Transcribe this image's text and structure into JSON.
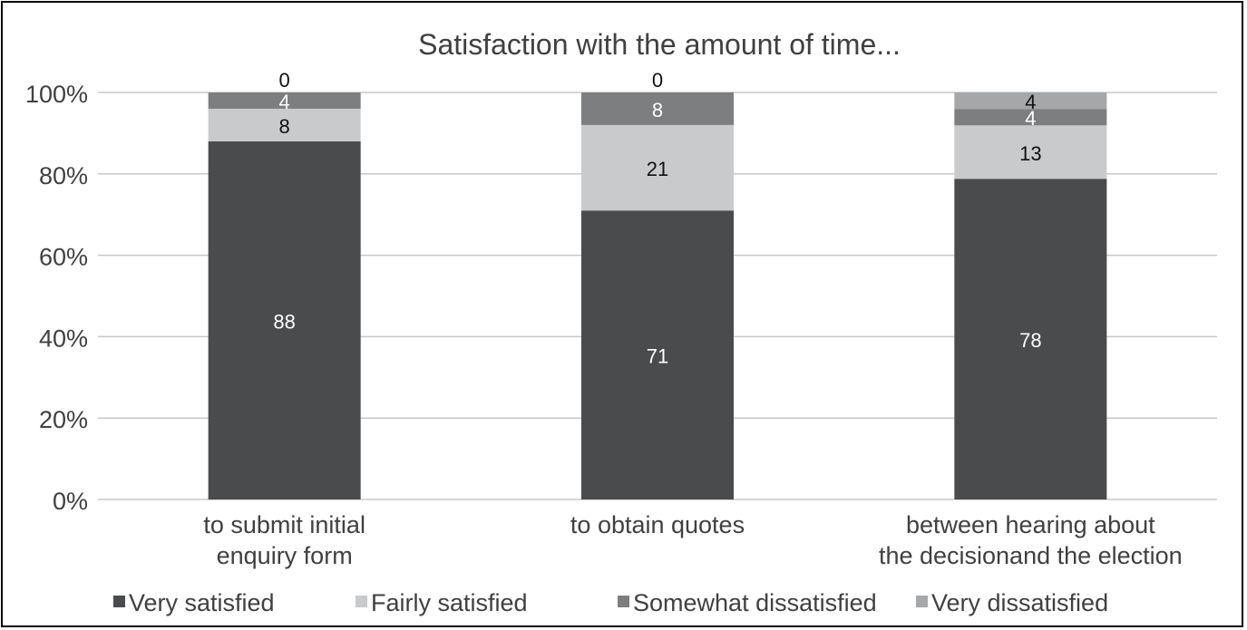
{
  "chart_data": {
    "type": "bar",
    "stacked": true,
    "title": "Satisfaction with the amount of time...",
    "xlabel": "",
    "ylabel": "",
    "ylim": [
      0,
      100
    ],
    "yticks": [
      "0%",
      "20%",
      "40%",
      "60%",
      "80%",
      "100%"
    ],
    "grid": true,
    "legend_position": "bottom",
    "categories": [
      [
        "to submit initial",
        "enquiry form"
      ],
      [
        "to obtain quotes"
      ],
      [
        "between hearing about",
        "the decisionand the election"
      ]
    ],
    "series": [
      {
        "name": "Very satisfied",
        "values": [
          88,
          71,
          78
        ],
        "color": "#4a4b4d",
        "label_color": "#ffffff"
      },
      {
        "name": "Fairly satisfied",
        "values": [
          8,
          21,
          13
        ],
        "color": "#c9cacc",
        "label_color": "#111111"
      },
      {
        "name": "Somewhat dissatisfied",
        "values": [
          4,
          8,
          4
        ],
        "color": "#7d7e80",
        "label_color": "#ffffff"
      },
      {
        "name": "Very dissatisfied",
        "values": [
          0,
          0,
          4
        ],
        "color": "#a6a7a9",
        "label_color": "#111111"
      }
    ]
  }
}
